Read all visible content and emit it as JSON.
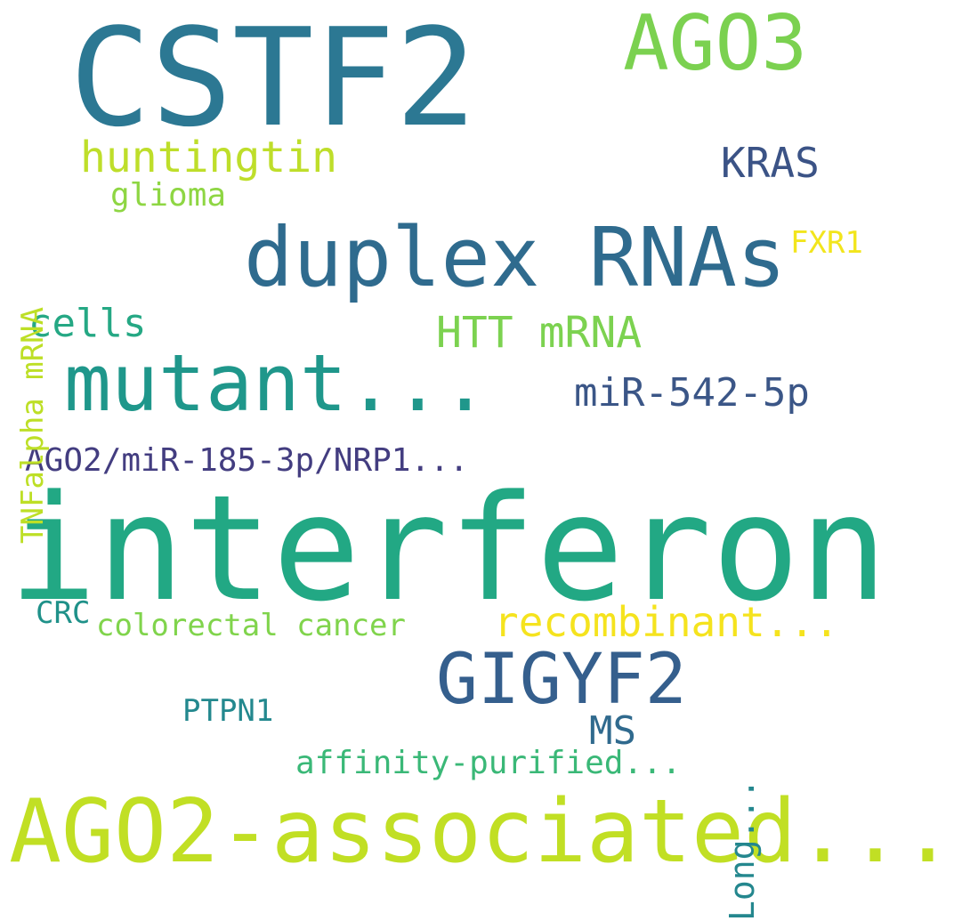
{
  "words": {
    "cstf2": {
      "text": "CSTF2",
      "color": "#2c7893"
    },
    "ago3": {
      "text": "AGO3",
      "color": "#7bd150"
    },
    "huntingtin": {
      "text": "huntingtin",
      "color": "#bede2a"
    },
    "glioma": {
      "text": "glioma",
      "color": "#8ed643"
    },
    "kras": {
      "text": "KRAS",
      "color": "#3b5386"
    },
    "duplex": {
      "text": "duplex RNAs",
      "color": "#2f6b8e"
    },
    "fxr1": {
      "text": "FXR1",
      "color": "#f2e51d"
    },
    "cells": {
      "text": "cells",
      "color": "#25a884"
    },
    "httmrna": {
      "text": "HTT mRNA",
      "color": "#7cd250"
    },
    "mutant": {
      "text": "mutant...",
      "color": "#1f978b"
    },
    "mir542": {
      "text": "miR-542-5p",
      "color": "#3b5687"
    },
    "ago2mir": {
      "text": "AGO2/miR-185-3p/NRP1...",
      "color": "#433d80"
    },
    "interferon": {
      "text": "interferon",
      "color": "#22a884"
    },
    "crc": {
      "text": "CRC",
      "color": "#1f9189"
    },
    "colorectal": {
      "text": "colorectal cancer",
      "color": "#80d44c"
    },
    "recomb": {
      "text": "recombinant...",
      "color": "#f5e31e"
    },
    "gigyf2": {
      "text": "GIGYF2",
      "color": "#355f8d"
    },
    "ptpn1": {
      "text": "PTPN1",
      "color": "#23888e"
    },
    "ms": {
      "text": "MS",
      "color": "#306a8e"
    },
    "affinity": {
      "text": "affinity-purified...",
      "color": "#3ab877"
    },
    "ago2assoc": {
      "text": "AGO2-associated...",
      "color": "#c1df24"
    },
    "tnf": {
      "text": "TNFalpha mRNA",
      "color": "#bddf26"
    },
    "long": {
      "text": "Long...",
      "color": "#24878e"
    }
  }
}
